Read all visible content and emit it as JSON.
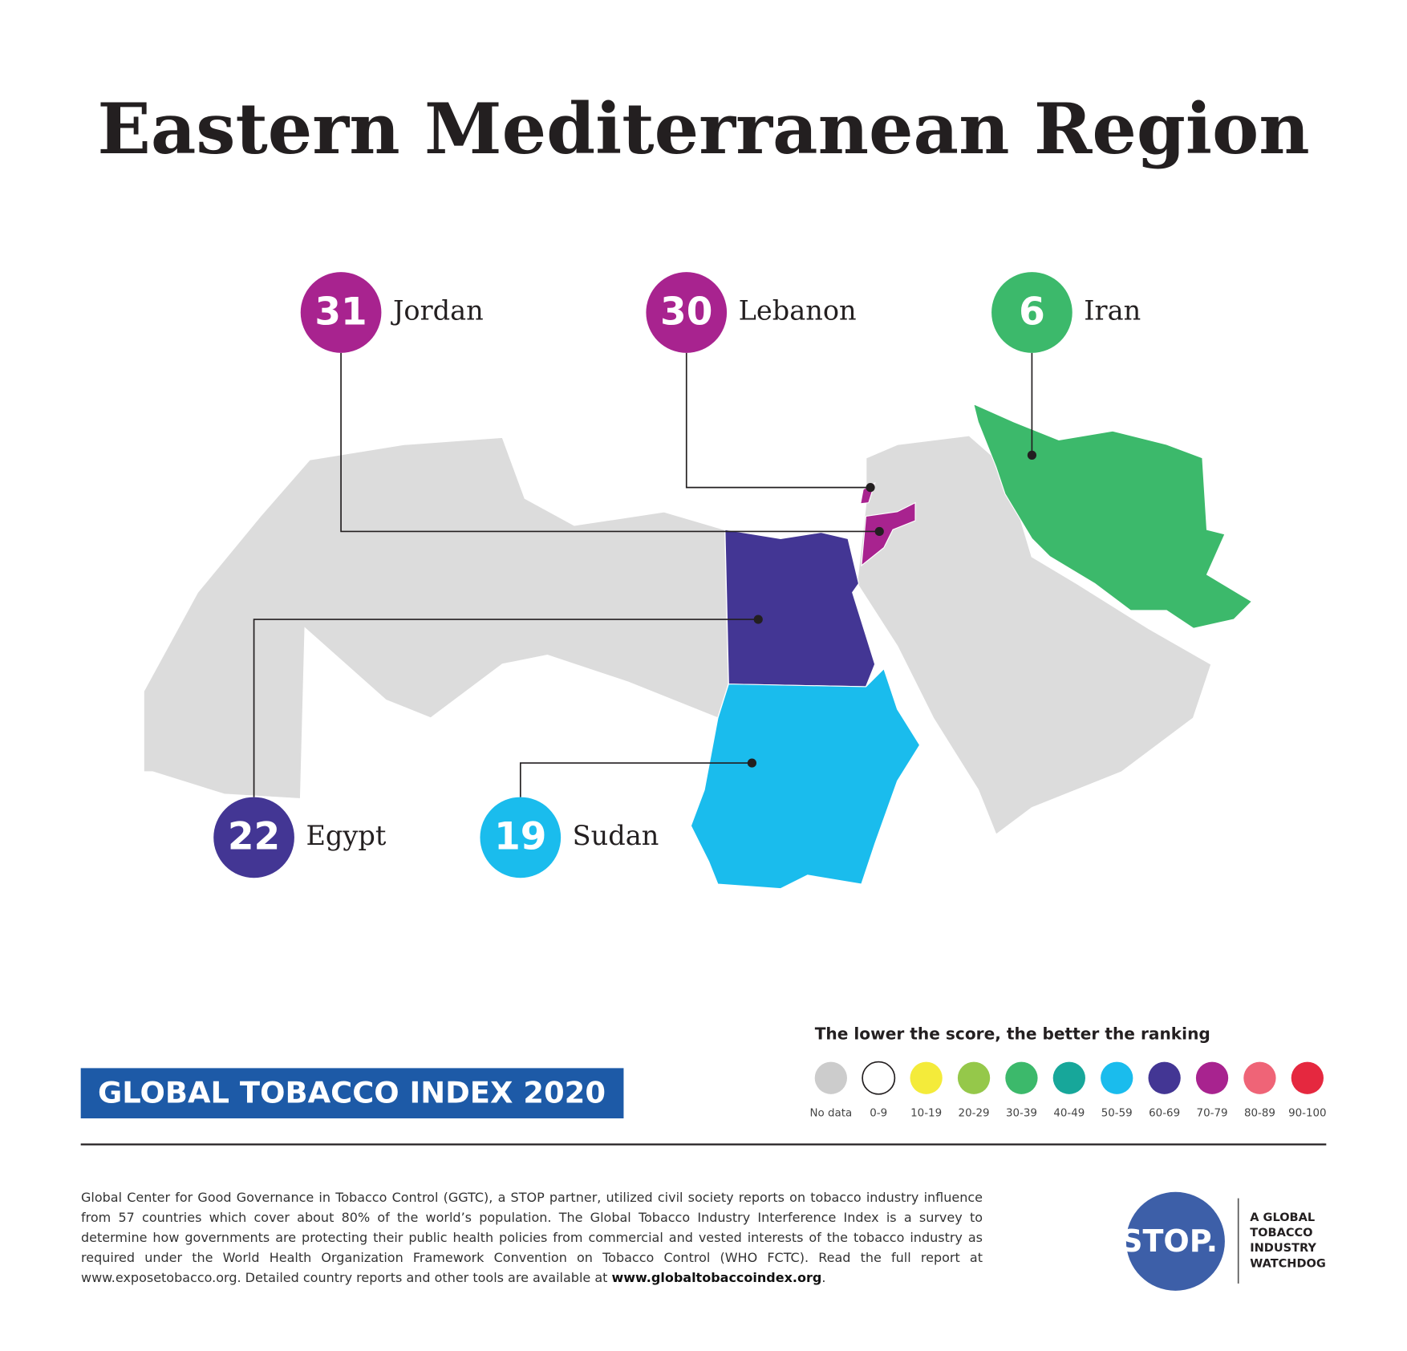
{
  "title": "Eastern Mediterranean Region",
  "countries": [
    {
      "name": "Jordan",
      "score": 31,
      "color": "#a8238f"
    },
    {
      "name": "Lebanon",
      "score": 30,
      "color": "#a8238f"
    },
    {
      "name": "Iran",
      "score": 6,
      "color": "#3cb96b"
    },
    {
      "name": "Egypt",
      "score": 22,
      "color": "#433694"
    },
    {
      "name": "Sudan",
      "score": 19,
      "color": "#1abced"
    }
  ],
  "legend": {
    "title": "The lower the score, the better the ranking",
    "items": [
      {
        "label": "No data",
        "color": "#cccccc"
      },
      {
        "label": "0-9",
        "color": "#ffffff"
      },
      {
        "label": "10-19",
        "color": "#f4eb3a"
      },
      {
        "label": "20-29",
        "color": "#95c84a"
      },
      {
        "label": "30-39",
        "color": "#3cb96b"
      },
      {
        "label": "40-49",
        "color": "#17a79a"
      },
      {
        "label": "50-59",
        "color": "#1abced"
      },
      {
        "label": "60-69",
        "color": "#433694"
      },
      {
        "label": "70-79",
        "color": "#a8238f"
      },
      {
        "label": "80-89",
        "color": "#ef6477"
      },
      {
        "label": "90-100",
        "color": "#e5283f"
      }
    ]
  },
  "banner": "GLOBAL TOBACCO INDEX 2020",
  "footer": {
    "text": "Global Center for Good Governance in Tobacco Control (GGTC), a STOP partner, utilized civil society reports on tobacco industry influence from 57 countries which cover about 80% of the world’s population. The Global Tobacco Industry Interference Index is a survey to determine how governments are protecting their public health policies from commercial and vested interests of the tobacco industry as required under the World Health Organization Framework Convention on Tobacco Control (WHO FCTC). Read the full report at www.exposetobacco.org. Detailed country reports and other tools are available at ",
    "link": "www.globaltobaccoindex.org",
    "end": "."
  },
  "logo": {
    "mark": "STOP.",
    "tagline": [
      "A GLOBAL",
      "TOBACCO",
      "INDUSTRY",
      "WATCHDOG"
    ]
  }
}
